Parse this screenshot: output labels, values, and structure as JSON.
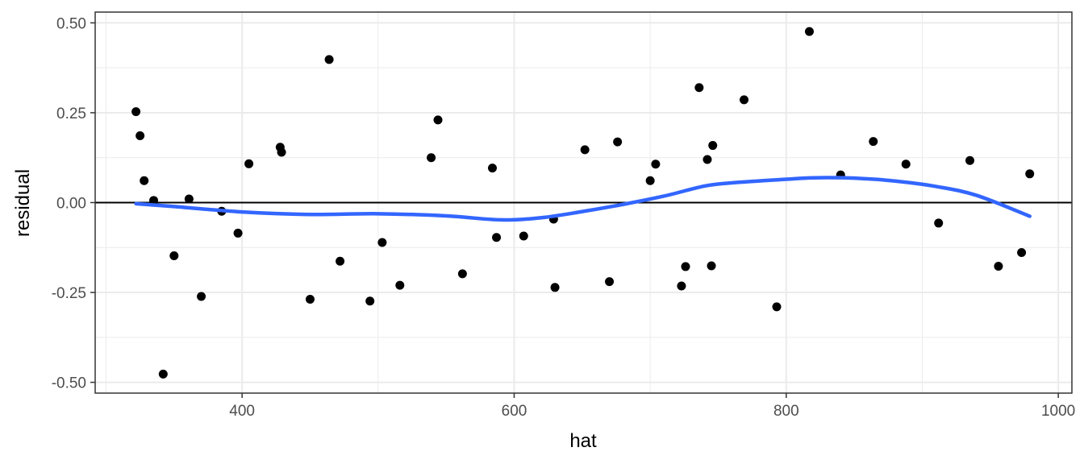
{
  "chart_data": {
    "type": "scatter",
    "title": "",
    "xlabel": "hat",
    "ylabel": "residual",
    "xlim": [
      292,
      1010
    ],
    "ylim": [
      -0.53,
      0.53
    ],
    "x_ticks": [
      400,
      600,
      800,
      1000
    ],
    "x_tick_labels": [
      "400",
      "600",
      "800",
      "1000"
    ],
    "y_ticks": [
      -0.5,
      -0.25,
      0.0,
      0.25,
      0.5
    ],
    "y_tick_labels": [
      "-0.50",
      "-0.25",
      "0.00",
      "0.25",
      "0.50"
    ],
    "grid": true,
    "hline": 0.0,
    "point_color": "#000000",
    "smooth_color": "#3366FF",
    "points": [
      [
        322,
        0.253
      ],
      [
        325,
        0.186
      ],
      [
        328,
        0.061
      ],
      [
        335,
        0.006
      ],
      [
        342,
        -0.477
      ],
      [
        350,
        -0.148
      ],
      [
        361,
        0.01
      ],
      [
        370,
        -0.261
      ],
      [
        385,
        -0.024
      ],
      [
        397,
        -0.085
      ],
      [
        405,
        0.108
      ],
      [
        428,
        0.154
      ],
      [
        429,
        0.14
      ],
      [
        450,
        -0.269
      ],
      [
        464,
        0.398
      ],
      [
        472,
        -0.163
      ],
      [
        494,
        -0.274
      ],
      [
        503,
        -0.111
      ],
      [
        516,
        -0.23
      ],
      [
        539,
        0.125
      ],
      [
        544,
        0.23
      ],
      [
        562,
        -0.198
      ],
      [
        584,
        0.096
      ],
      [
        587,
        -0.097
      ],
      [
        607,
        -0.093
      ],
      [
        629,
        -0.046
      ],
      [
        630,
        -0.236
      ],
      [
        652,
        0.147
      ],
      [
        670,
        -0.22
      ],
      [
        676,
        0.169
      ],
      [
        700,
        0.061
      ],
      [
        704,
        0.107
      ],
      [
        723,
        -0.232
      ],
      [
        726,
        -0.178
      ],
      [
        736,
        0.32
      ],
      [
        742,
        0.12
      ],
      [
        745,
        -0.176
      ],
      [
        746,
        0.159
      ],
      [
        769,
        0.286
      ],
      [
        793,
        -0.29
      ],
      [
        817,
        0.476
      ],
      [
        840,
        0.077
      ],
      [
        864,
        0.17
      ],
      [
        888,
        0.107
      ],
      [
        912,
        -0.057
      ],
      [
        935,
        0.117
      ],
      [
        956,
        -0.177
      ],
      [
        973,
        -0.139
      ],
      [
        979,
        0.08
      ]
    ],
    "smooth": [
      [
        322,
        -0.003
      ],
      [
        350,
        -0.011
      ],
      [
        400,
        -0.026
      ],
      [
        450,
        -0.033
      ],
      [
        500,
        -0.031
      ],
      [
        550,
        -0.037
      ],
      [
        590,
        -0.048
      ],
      [
        620,
        -0.042
      ],
      [
        650,
        -0.025
      ],
      [
        680,
        -0.005
      ],
      [
        710,
        0.018
      ],
      [
        740,
        0.046
      ],
      [
        760,
        0.055
      ],
      [
        800,
        0.065
      ],
      [
        820,
        0.069
      ],
      [
        850,
        0.068
      ],
      [
        880,
        0.06
      ],
      [
        910,
        0.045
      ],
      [
        940,
        0.02
      ],
      [
        979,
        -0.038
      ]
    ]
  }
}
